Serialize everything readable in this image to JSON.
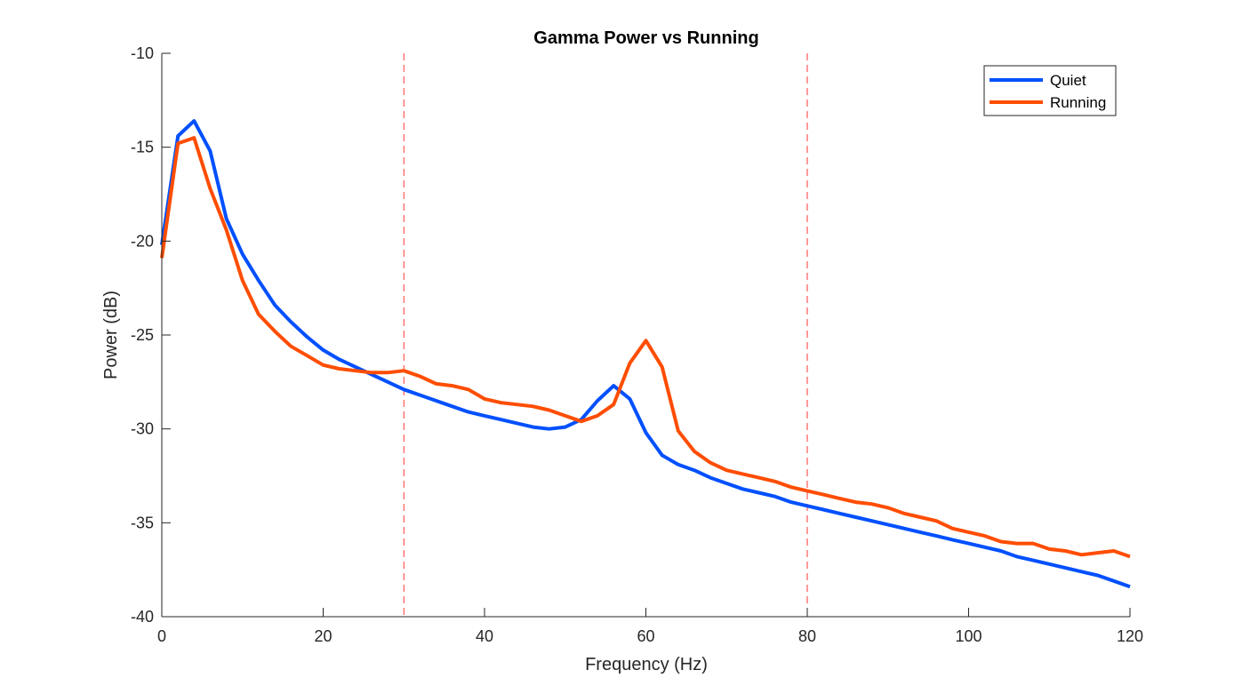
{
  "chart_data": {
    "type": "line",
    "title": "Gamma Power vs Running",
    "xlabel": "Frequency (Hz)",
    "ylabel": "Power (dB)",
    "xlim": [
      0,
      120
    ],
    "ylim": [
      -40,
      -10
    ],
    "x_ticks": [
      0,
      20,
      40,
      60,
      80,
      100,
      120
    ],
    "y_ticks": [
      -10,
      -15,
      -20,
      -25,
      -30,
      -35,
      -40
    ],
    "x_tick_labels": [
      "0",
      "20",
      "40",
      "60",
      "80",
      "100",
      "120"
    ],
    "y_tick_labels": [
      "-10",
      "-15",
      "-20",
      "-25",
      "-30",
      "-35",
      "-40"
    ],
    "grid": false,
    "legend_position": "top-right",
    "vlines": [
      {
        "x": 30,
        "color": "#ff0000",
        "style": "dashed"
      },
      {
        "x": 80,
        "color": "#ff0000",
        "style": "dashed"
      }
    ],
    "series": [
      {
        "name": "Quiet",
        "color": "#0050ff",
        "x": [
          0,
          2,
          4,
          6,
          8,
          10,
          12,
          14,
          16,
          18,
          20,
          22,
          24,
          26,
          28,
          30,
          32,
          34,
          36,
          38,
          40,
          42,
          44,
          46,
          48,
          50,
          52,
          54,
          56,
          58,
          60,
          62,
          64,
          66,
          68,
          70,
          72,
          74,
          76,
          78,
          80,
          82,
          84,
          86,
          88,
          90,
          92,
          94,
          96,
          98,
          100,
          102,
          104,
          106,
          108,
          110,
          112,
          114,
          116,
          118,
          120
        ],
        "values": [
          -20.2,
          -14.4,
          -13.6,
          -15.2,
          -18.8,
          -20.7,
          -22.1,
          -23.4,
          -24.3,
          -25.1,
          -25.8,
          -26.3,
          -26.7,
          -27.1,
          -27.5,
          -27.9,
          -28.2,
          -28.5,
          -28.8,
          -29.1,
          -29.3,
          -29.5,
          -29.7,
          -29.9,
          -30.0,
          -29.9,
          -29.5,
          -28.5,
          -27.7,
          -28.4,
          -30.2,
          -31.4,
          -31.9,
          -32.2,
          -32.6,
          -32.9,
          -33.2,
          -33.4,
          -33.6,
          -33.9,
          -34.1,
          -34.3,
          -34.5,
          -34.7,
          -34.9,
          -35.1,
          -35.3,
          -35.5,
          -35.7,
          -35.9,
          -36.1,
          -36.3,
          -36.5,
          -36.8,
          -37.0,
          -37.2,
          -37.4,
          -37.6,
          -37.8,
          -38.1,
          -38.4
        ]
      },
      {
        "name": "Running",
        "color": "#ff4d00",
        "x": [
          0,
          2,
          4,
          6,
          8,
          10,
          12,
          14,
          16,
          18,
          20,
          22,
          24,
          26,
          28,
          30,
          32,
          34,
          36,
          38,
          40,
          42,
          44,
          46,
          48,
          50,
          52,
          54,
          56,
          58,
          60,
          62,
          64,
          66,
          68,
          70,
          72,
          74,
          76,
          78,
          80,
          82,
          84,
          86,
          88,
          90,
          92,
          94,
          96,
          98,
          100,
          102,
          104,
          106,
          108,
          110,
          112,
          114,
          116,
          118,
          120
        ],
        "values": [
          -20.9,
          -14.8,
          -14.5,
          -17.2,
          -19.4,
          -22.1,
          -23.9,
          -24.8,
          -25.6,
          -26.1,
          -26.6,
          -26.8,
          -26.9,
          -27.0,
          -27.0,
          -26.9,
          -27.2,
          -27.6,
          -27.7,
          -27.9,
          -28.4,
          -28.6,
          -28.7,
          -28.8,
          -29.0,
          -29.3,
          -29.6,
          -29.3,
          -28.7,
          -26.5,
          -25.3,
          -26.7,
          -30.1,
          -31.2,
          -31.8,
          -32.2,
          -32.4,
          -32.6,
          -32.8,
          -33.1,
          -33.3,
          -33.5,
          -33.7,
          -33.9,
          -34.0,
          -34.2,
          -34.5,
          -34.7,
          -34.9,
          -35.3,
          -35.5,
          -35.7,
          -36.0,
          -36.1,
          -36.1,
          -36.4,
          -36.5,
          -36.7,
          -36.6,
          -36.5,
          -36.8
        ]
      }
    ]
  }
}
